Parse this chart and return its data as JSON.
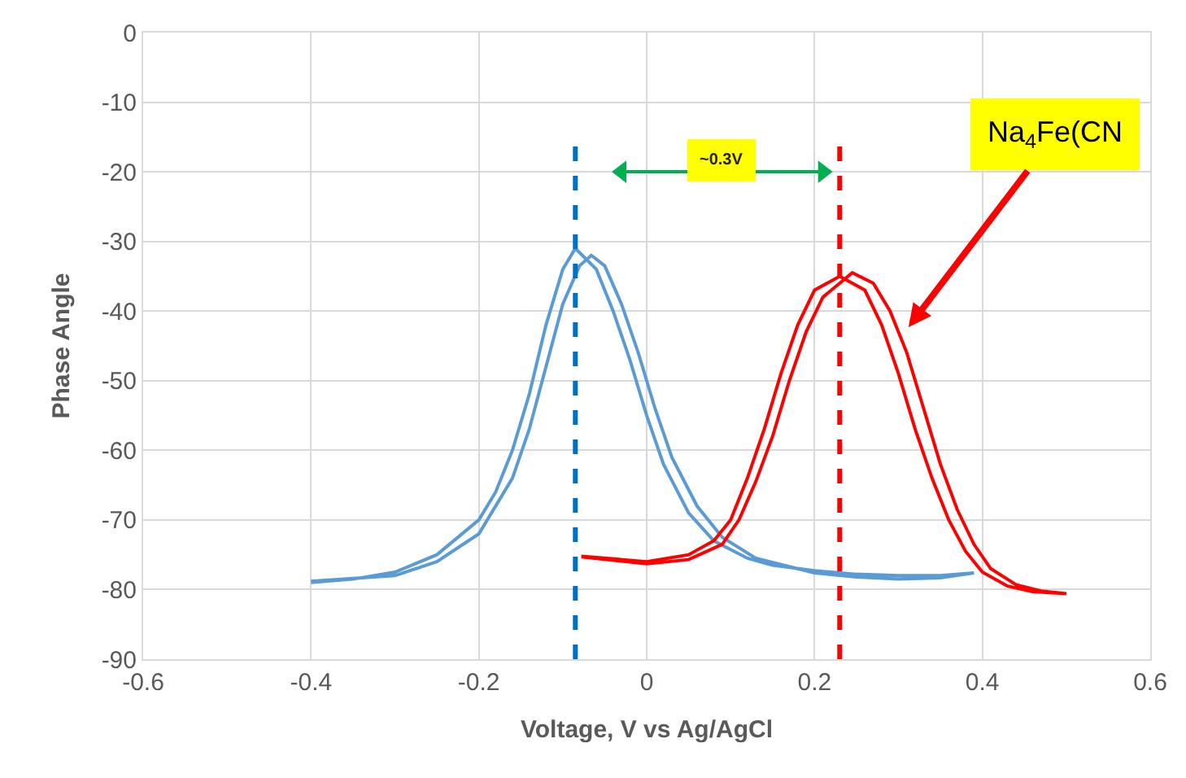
{
  "chart_data": {
    "type": "line",
    "xlabel": "Voltage, V vs Ag/AgCl",
    "ylabel": "Phase Angle",
    "xlim": [
      -0.6,
      0.6
    ],
    "xticks": [
      -0.6,
      -0.4,
      -0.2,
      0,
      0.2,
      0.4,
      0.6
    ],
    "ylim": [
      -90,
      0
    ],
    "yticks": [
      -90,
      -80,
      -70,
      -60,
      -50,
      -40,
      -30,
      -20,
      -10,
      0
    ],
    "grid": true,
    "marker": "none",
    "line_style": "solid",
    "series": [
      {
        "color": "#5b9bd5",
        "x": [
          -0.4,
          -0.35,
          -0.3,
          -0.25,
          -0.2,
          -0.18,
          -0.16,
          -0.14,
          -0.12,
          -0.1,
          -0.085,
          -0.06,
          -0.04,
          -0.02,
          0,
          0.02,
          0.05,
          0.08,
          0.12,
          0.15,
          0.2,
          0.25,
          0.3,
          0.35,
          0.39,
          0.35,
          0.3,
          0.25,
          0.2,
          0.13,
          0.09,
          0.06,
          0.03,
          0.01,
          -0.01,
          -0.03,
          -0.05,
          -0.066,
          -0.08,
          -0.1,
          -0.12,
          -0.14,
          -0.16,
          -0.2,
          -0.25,
          -0.3,
          -0.4
        ],
        "values": [
          -79,
          -78.5,
          -77.5,
          -75,
          -70,
          -66,
          -60,
          -52,
          -42,
          -34,
          -31,
          -34,
          -40,
          -47,
          -55,
          -62,
          -69,
          -73,
          -75.5,
          -76.5,
          -77.3,
          -77.8,
          -78,
          -78,
          -77.6,
          -78.3,
          -78.5,
          -78.2,
          -77.6,
          -75.5,
          -72.5,
          -68,
          -61,
          -54,
          -46,
          -39,
          -33.5,
          -32,
          -33.5,
          -39,
          -48,
          -57,
          -64,
          -72,
          -76,
          -78,
          -78.8
        ]
      },
      {
        "color": "#ff0000",
        "x": [
          -0.078,
          0,
          0.05,
          0.08,
          0.1,
          0.12,
          0.14,
          0.16,
          0.18,
          0.2,
          0.23,
          0.26,
          0.28,
          0.3,
          0.32,
          0.34,
          0.36,
          0.38,
          0.4,
          0.43,
          0.46,
          0.5,
          0.47,
          0.44,
          0.41,
          0.39,
          0.37,
          0.35,
          0.33,
          0.31,
          0.29,
          0.27,
          0.245,
          0.21,
          0.19,
          0.17,
          0.15,
          0.13,
          0.11,
          0.09,
          0.05,
          0,
          -0.078
        ],
        "values": [
          -75.2,
          -76,
          -75,
          -73,
          -70,
          -64,
          -57,
          -49,
          -42,
          -37,
          -35,
          -37,
          -42,
          -49,
          -57,
          -64,
          -70,
          -74.5,
          -77.5,
          -79.5,
          -80.3,
          -80.6,
          -80.2,
          -79.3,
          -77,
          -73.5,
          -68.5,
          -62,
          -54,
          -46,
          -40,
          -36,
          -34.5,
          -38,
          -43,
          -50,
          -58,
          -64.5,
          -70,
          -73.5,
          -75.7,
          -76.3,
          -75.3
        ]
      },
      {
        "color": "#00b050",
        "marker": "triangle",
        "x": [
          -0.03,
          0.21
        ],
        "values": [
          -20,
          -20
        ]
      }
    ],
    "ref_lines": [
      {
        "axis": "x",
        "value": -0.085,
        "color": "#0070c0",
        "line_style": "dashed"
      },
      {
        "axis": "x",
        "value": 0.23,
        "color": "#ff0000",
        "line_style": "dashed"
      }
    ],
    "annotations": [
      "~0.3V",
      "Na$_{4}$Fe(CN"
    ]
  }
}
